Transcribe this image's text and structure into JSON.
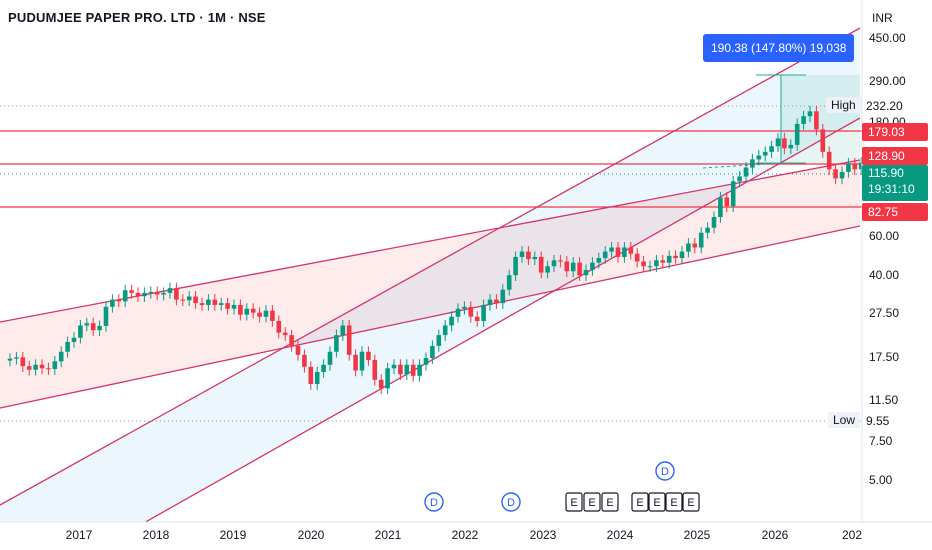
{
  "header": {
    "title": "PUDUMJEE PAPER PRO. LTD · 1M · NSE",
    "currency": "INR"
  },
  "price_axis": {
    "ticks": [
      "450.00",
      "290.00",
      "180.00",
      "60.00",
      "40.00",
      "27.50",
      "17.50",
      "11.50",
      "7.50",
      "5.00"
    ]
  },
  "price_tags": {
    "t179": "179.03",
    "t128": "128.90",
    "t82": "82.75",
    "last": "115.90",
    "countdown": "19:31:10"
  },
  "markers": {
    "high_label": "High",
    "high_value": "232.20",
    "low_label": "Low",
    "low_value": "9.55"
  },
  "measure": {
    "text": "190.38 (147.80%) 19,038"
  },
  "event_badges": {
    "dividend": "D",
    "earnings": "E"
  },
  "colors": {
    "up": "#089981",
    "down": "#f23645",
    "channel_line": "#d6336c",
    "accent": "#2962ff"
  },
  "chart_data": {
    "type": "candlestick",
    "title": "PUDUMJEE PAPER PRO. LTD · 1M · NSE",
    "yscale": "log",
    "ylim": [
      4,
      560
    ],
    "x_ticks": [
      "2017",
      "2018",
      "2019",
      "2020",
      "2021",
      "2022",
      "2023",
      "2024",
      "2025",
      "2026",
      "202"
    ],
    "high": 232.2,
    "low": 9.55,
    "last": 115.9,
    "horizontal_levels": [
      179.03,
      128.9,
      82.75
    ],
    "series": [
      {
        "name": "",
        "closes": [
          14.4,
          14.6,
          13.3,
          12.8,
          13.5,
          13.0,
          12.9,
          14.0,
          15.5,
          17.2,
          18.0,
          20.5,
          21.0,
          19.5,
          20.4,
          25.0,
          27.0,
          26.5,
          29.8,
          29.0,
          28.0,
          29.0,
          29.3,
          28.5,
          29.0,
          30.5,
          27.0,
          26.8,
          27.9,
          26.0,
          25.5,
          27.0,
          25.5,
          26.0,
          24.5,
          25.5,
          23.0,
          24.5,
          23.5,
          22.5,
          24.0,
          21.5,
          19.0,
          18.5,
          16.5,
          15.0,
          13.2,
          11.0,
          12.5,
          13.5,
          15.5,
          18.5,
          20.5,
          15.0,
          12.7,
          15.5,
          14.2,
          11.5,
          10.5,
          13.0,
          13.5,
          12.2,
          13.5,
          12.0,
          13.5,
          14.5,
          16.5,
          18.5,
          20.5,
          22.5,
          24.5,
          25.0,
          22.5,
          21.5,
          25.5,
          27.0,
          26.0,
          30.0,
          35.0,
          42.5,
          45.0,
          41.5,
          42.5,
          36.0,
          38.5,
          41.0,
          40.5,
          36.5,
          40.0,
          35.0,
          37.0,
          40.0,
          42.0,
          45.0,
          47.0,
          42.5,
          47.0,
          44.0,
          40.5,
          38.5,
          38.5,
          41.0,
          40.0,
          43.0,
          42.0,
          45.0,
          49.0,
          47.0,
          55.0,
          58.0,
          65.0,
          80.0,
          73.0,
          95.0,
          100.0,
          110.0,
          120.0,
          125.0,
          130.0,
          138.0,
          150.0,
          135.0,
          140.0,
          175.0,
          190.0,
          200.0,
          165.0,
          130.0,
          108.0,
          98.0,
          105.0,
          115.0,
          108.0,
          115.9
        ]
      }
    ]
  }
}
